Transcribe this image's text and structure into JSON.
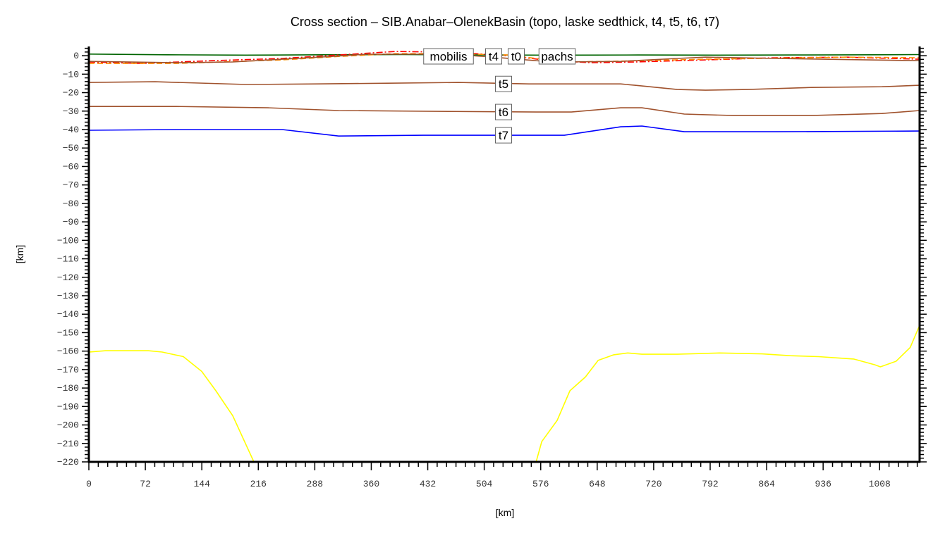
{
  "chart_data": {
    "type": "line",
    "title": "Cross section – SIB.Anabar–OlenekBasin (topo, laske sedthick, t4, t5, t6, t7)",
    "xlabel": "[km]",
    "ylabel": "[km]",
    "xlim": [
      0,
      1059
    ],
    "ylim": [
      -220,
      5
    ],
    "xticks": [
      0,
      72,
      144,
      216,
      288,
      360,
      432,
      504,
      576,
      648,
      720,
      792,
      864,
      936,
      1008
    ],
    "yticks": [
      0,
      -10,
      -20,
      -30,
      -40,
      -50,
      -60,
      -70,
      -80,
      -90,
      -100,
      -110,
      -120,
      -130,
      -140,
      -150,
      -160,
      -170,
      -180,
      -190,
      -200,
      -210,
      -220
    ],
    "grid": false,
    "overlap_labels": [
      "mobilis",
      "t4",
      "t0",
      "pachs"
    ],
    "series": [
      {
        "label": "",
        "color": "#006400",
        "dash": "",
        "x": [
          0,
          100,
          200,
          300,
          400,
          500,
          600,
          700,
          800,
          900,
          1000,
          1059
        ],
        "y": [
          0.9,
          0.5,
          0.3,
          0.5,
          0.6,
          0.4,
          0.3,
          0.4,
          0.3,
          0.4,
          0.5,
          0.6
        ]
      },
      {
        "label": "",
        "color": "#ff0000",
        "dash": "9,3,2,3",
        "x": [
          0,
          66.5,
          156.5,
          246.4,
          318.3,
          390.3,
          462.2,
          534.2,
          588.2,
          642.2,
          696.2,
          786.1,
          876,
          966,
          1059
        ],
        "y": [
          -3.4,
          -4.2,
          -2.7,
          -1.5,
          0.4,
          2.3,
          1.9,
          0,
          -2.7,
          -3.8,
          -3.4,
          -2.3,
          -1.1,
          -0.8,
          -1.9
        ]
      },
      {
        "label": "",
        "color": "#ff8c00",
        "dash": "8,4",
        "x": [
          0,
          111.5,
          246.4,
          318.3,
          390.3,
          462.2,
          534.2,
          606.2,
          660.1,
          786.1,
          966,
          1059
        ],
        "y": [
          -4.2,
          -4.2,
          -2.3,
          -0.4,
          1.1,
          1.1,
          0.4,
          -3.4,
          -3.1,
          -1.9,
          -0.8,
          -1.1
        ]
      },
      {
        "label": "t4",
        "color": "#a0522d",
        "dash": "",
        "x": [
          0,
          111.5,
          183.5,
          246.4,
          309.3,
          354.3,
          462.2,
          516,
          570,
          606,
          678,
          750,
          786,
          876,
          1059
        ],
        "y": [
          -3.1,
          -3.8,
          -3.4,
          -1.9,
          -0.4,
          0.8,
          0.8,
          -0.8,
          -2.7,
          -3.4,
          -3.1,
          -1.5,
          -0.8,
          -1.5,
          -2.7
        ]
      },
      {
        "label": "t5",
        "color": "#a0522d",
        "dash": "",
        "x": [
          0,
          84.5,
          201,
          291,
          381,
          471,
          561,
          678,
          696,
          750,
          786,
          840,
          921,
          1011,
          1059
        ],
        "y": [
          -14.5,
          -14.1,
          -15.6,
          -15.3,
          -14.9,
          -14.5,
          -15.3,
          -15.3,
          -16,
          -18.3,
          -18.7,
          -18.3,
          -17.2,
          -16.8,
          -16
        ]
      },
      {
        "label": "t6",
        "color": "#a0522d",
        "dash": "",
        "x": [
          0,
          111.5,
          228.4,
          318.3,
          426.2,
          570.1,
          615.1,
          678,
          705,
          759,
          822,
          921,
          1011,
          1059
        ],
        "y": [
          -27.5,
          -27.5,
          -28.2,
          -29.7,
          -30.1,
          -30.5,
          -30.5,
          -28.2,
          -28.2,
          -31.6,
          -32.4,
          -32.4,
          -31.3,
          -29.7
        ]
      },
      {
        "label": "t7",
        "color": "#0000ff",
        "dash": "",
        "x": [
          0,
          111.5,
          246.4,
          318.3,
          426.2,
          606.2,
          678,
          705,
          759,
          876,
          1059
        ],
        "y": [
          -40.4,
          -40,
          -40,
          -43.5,
          -43.1,
          -43.1,
          -38.5,
          -38.1,
          -41.2,
          -41.2,
          -40.8
        ]
      },
      {
        "label": "",
        "color": "#ffff00",
        "dash": "",
        "x": [
          0,
          21.6,
          75.5,
          93.5,
          120.5,
          143.9,
          161.9,
          183.4,
          210.4,
          null,
          570.1,
          577.3,
          597,
          613.2,
          633,
          649.2,
          669,
          687,
          705,
          750,
          804,
          858,
          894,
          930,
          975,
          1002,
          1009,
          1029,
          1047,
          1059
        ],
        "y": [
          -160.5,
          -159.8,
          -159.8,
          -160.5,
          -163,
          -171,
          -181.5,
          -195,
          -220,
          null,
          -220,
          -209,
          -197.5,
          -181.5,
          -174,
          -165,
          -162,
          -161,
          -161.7,
          -161.7,
          -161,
          -161.5,
          -162.5,
          -163,
          -164.3,
          -167.4,
          -168.5,
          -165.5,
          -158,
          -146
        ]
      }
    ]
  }
}
